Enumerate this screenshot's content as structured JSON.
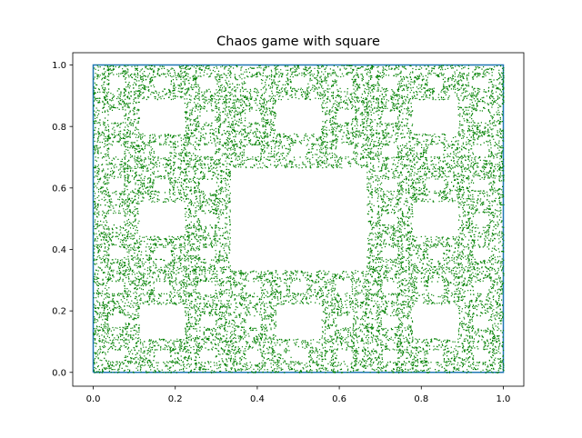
{
  "chart_data": {
    "type": "scatter",
    "title": "Chaos game with square",
    "xlabel": "",
    "ylabel": "",
    "xlim": [
      -0.05,
      1.05
    ],
    "ylim": [
      -0.045,
      1.04
    ],
    "xticks": [
      0.0,
      0.2,
      0.4,
      0.6,
      0.8,
      1.0
    ],
    "xtick_labels": [
      "0.0",
      "0.2",
      "0.4",
      "0.6",
      "0.8",
      "1.0"
    ],
    "yticks": [
      0.0,
      0.2,
      0.4,
      0.6,
      0.8,
      1.0
    ],
    "ytick_labels": [
      "0.0",
      "0.2",
      "0.4",
      "0.6",
      "0.8",
      "1.0"
    ],
    "grid": false,
    "series": [
      {
        "kind": "line",
        "color": "#1f77b4",
        "x": [
          0,
          1,
          1,
          0,
          0
        ],
        "y": [
          0,
          0,
          1,
          1,
          0
        ]
      },
      {
        "kind": "points",
        "color": "#008000",
        "generator": {
          "vertices": [
            [
              0,
              0
            ],
            [
              1,
              0
            ],
            [
              1,
              1
            ],
            [
              0,
              1
            ]
          ],
          "edge_midpoints": [
            [
              0.5,
              0
            ],
            [
              1,
              0.5
            ],
            [
              0.5,
              1
            ],
            [
              0,
              0.5
            ]
          ]
        }
      }
    ]
  }
}
